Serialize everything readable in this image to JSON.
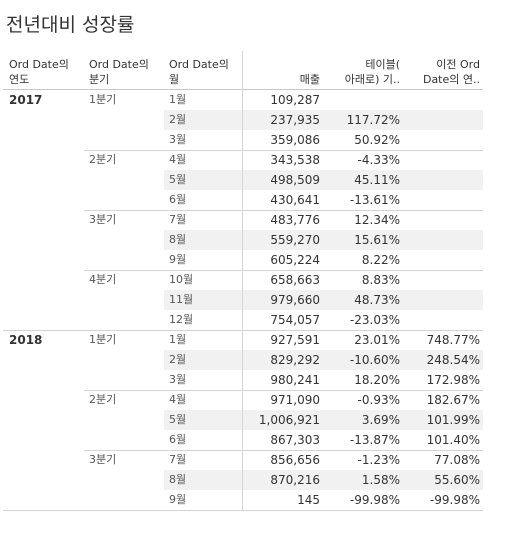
{
  "title": "전년대비 성장률",
  "headers": {
    "year": [
      "Ord Date의",
      "연도"
    ],
    "quarter": [
      "Ord Date의",
      "분기"
    ],
    "month": [
      "Ord Date의",
      "월"
    ],
    "sales": "매출",
    "table_calc": [
      "테이블(",
      "아래로) 기.."
    ],
    "prev": [
      "이전 Ord",
      "Date의 연.."
    ]
  },
  "rows": [
    {
      "year": "2017",
      "quarter": "1분기",
      "month": "1월",
      "sales": "109,287",
      "calc": "",
      "prev": ""
    },
    {
      "year": "",
      "quarter": "",
      "month": "2월",
      "sales": "237,935",
      "calc": "117.72%",
      "prev": ""
    },
    {
      "year": "",
      "quarter": "",
      "month": "3월",
      "sales": "359,086",
      "calc": "50.92%",
      "prev": ""
    },
    {
      "year": "",
      "quarter": "2분기",
      "month": "4월",
      "sales": "343,538",
      "calc": "-4.33%",
      "prev": ""
    },
    {
      "year": "",
      "quarter": "",
      "month": "5월",
      "sales": "498,509",
      "calc": "45.11%",
      "prev": ""
    },
    {
      "year": "",
      "quarter": "",
      "month": "6월",
      "sales": "430,641",
      "calc": "-13.61%",
      "prev": ""
    },
    {
      "year": "",
      "quarter": "3분기",
      "month": "7월",
      "sales": "483,776",
      "calc": "12.34%",
      "prev": ""
    },
    {
      "year": "",
      "quarter": "",
      "month": "8월",
      "sales": "559,270",
      "calc": "15.61%",
      "prev": ""
    },
    {
      "year": "",
      "quarter": "",
      "month": "9월",
      "sales": "605,224",
      "calc": "8.22%",
      "prev": ""
    },
    {
      "year": "",
      "quarter": "4분기",
      "month": "10월",
      "sales": "658,663",
      "calc": "8.83%",
      "prev": ""
    },
    {
      "year": "",
      "quarter": "",
      "month": "11월",
      "sales": "979,660",
      "calc": "48.73%",
      "prev": ""
    },
    {
      "year": "",
      "quarter": "",
      "month": "12월",
      "sales": "754,057",
      "calc": "-23.03%",
      "prev": ""
    },
    {
      "year": "2018",
      "quarter": "1분기",
      "month": "1월",
      "sales": "927,591",
      "calc": "23.01%",
      "prev": "748.77%"
    },
    {
      "year": "",
      "quarter": "",
      "month": "2월",
      "sales": "829,292",
      "calc": "-10.60%",
      "prev": "248.54%"
    },
    {
      "year": "",
      "quarter": "",
      "month": "3월",
      "sales": "980,241",
      "calc": "18.20%",
      "prev": "172.98%"
    },
    {
      "year": "",
      "quarter": "2분기",
      "month": "4월",
      "sales": "971,090",
      "calc": "-0.93%",
      "prev": "182.67%"
    },
    {
      "year": "",
      "quarter": "",
      "month": "5월",
      "sales": "1,006,921",
      "calc": "3.69%",
      "prev": "101.99%"
    },
    {
      "year": "",
      "quarter": "",
      "month": "6월",
      "sales": "867,303",
      "calc": "-13.87%",
      "prev": "101.40%"
    },
    {
      "year": "",
      "quarter": "3분기",
      "month": "7월",
      "sales": "856,656",
      "calc": "-1.23%",
      "prev": "77.08%"
    },
    {
      "year": "",
      "quarter": "",
      "month": "8월",
      "sales": "870,216",
      "calc": "1.58%",
      "prev": "55.60%"
    },
    {
      "year": "",
      "quarter": "",
      "month": "9월",
      "sales": "145",
      "calc": "-99.98%",
      "prev": "-99.98%"
    }
  ]
}
